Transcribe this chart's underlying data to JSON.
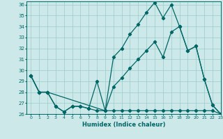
{
  "xlabel": "Humidex (Indice chaleur)",
  "xlim": [
    -0.5,
    23
  ],
  "ylim": [
    26,
    36.3
  ],
  "yticks": [
    26,
    27,
    28,
    29,
    30,
    31,
    32,
    33,
    34,
    35,
    36
  ],
  "xticks": [
    0,
    1,
    2,
    3,
    4,
    5,
    6,
    7,
    8,
    9,
    10,
    11,
    12,
    13,
    14,
    15,
    16,
    17,
    18,
    19,
    20,
    21,
    22,
    23
  ],
  "bg_color": "#cce8e8",
  "line_color": "#006666",
  "grid_color": "#99cccc",
  "line_top": {
    "x": [
      0,
      1,
      2,
      3,
      4,
      5,
      6,
      7,
      8,
      9,
      10,
      11,
      12,
      13,
      14,
      15,
      16,
      17,
      18,
      19,
      20,
      21,
      22,
      23
    ],
    "y": [
      29.5,
      28.0,
      28.0,
      26.7,
      26.2,
      26.7,
      26.7,
      26.5,
      29.0,
      26.3,
      31.2,
      32.0,
      33.3,
      34.2,
      35.3,
      36.2,
      34.8,
      36.0,
      34.0,
      31.8,
      32.2,
      29.2,
      26.8,
      26.0
    ]
  },
  "line_mid": {
    "x": [
      0,
      1,
      2,
      9,
      10,
      11,
      12,
      13,
      14,
      15,
      16,
      17,
      18,
      19,
      20,
      21,
      22,
      23
    ],
    "y": [
      29.5,
      28.0,
      28.0,
      26.3,
      28.5,
      29.3,
      30.2,
      31.0,
      31.8,
      32.6,
      31.2,
      33.5,
      34.0,
      31.8,
      32.2,
      29.2,
      26.8,
      26.0
    ]
  },
  "line_bot": {
    "x": [
      0,
      1,
      2,
      3,
      4,
      5,
      6,
      7,
      8,
      9,
      10,
      11,
      12,
      13,
      14,
      15,
      16,
      17,
      18,
      19,
      20,
      21,
      22,
      23
    ],
    "y": [
      29.5,
      28.0,
      28.0,
      26.7,
      26.2,
      26.7,
      26.7,
      26.5,
      26.3,
      26.3,
      26.3,
      26.3,
      26.3,
      26.3,
      26.3,
      26.3,
      26.3,
      26.3,
      26.3,
      26.3,
      26.3,
      26.3,
      26.3,
      26.0
    ]
  }
}
